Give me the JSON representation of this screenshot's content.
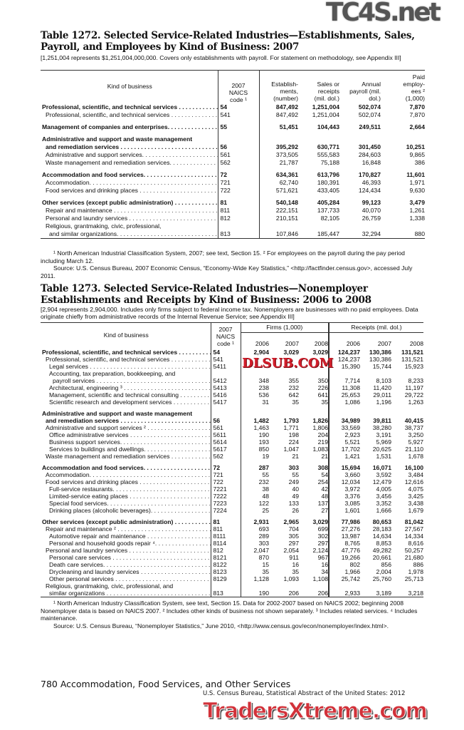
{
  "watermarks": {
    "top": "TC4S.net",
    "middle": "DLSUB.COM",
    "bottom": "TradersXtreme.com"
  },
  "t1": {
    "title1": "Table 1272. Selected Service-Related Industries—Establishments, Sales,",
    "title2": "Payroll, and Employees by Kind of Business: 2007",
    "note": "[1,251,004 represents $1,251,004,000,000. Covers only establishments with payroll. For statement on methodology, see Appendix III]",
    "headers": [
      "Kind of business",
      "2007 NAICS code ¹",
      "Establish- ments, (number)",
      "Sales or receipts (mil. dol.)",
      "Annual payroll (mil. dol.)",
      "Paid employ- ees ² (1,000)"
    ],
    "rows": [
      {
        "label": "Professional, scientific, and technical services",
        "code": "54",
        "v": [
          "847,492",
          "1,251,004",
          "502,074",
          "7,870"
        ],
        "bold": true
      },
      {
        "label": "Professional, scientific, and technical services",
        "code": "541",
        "v": [
          "847,492",
          "1,251,004",
          "502,074",
          "7,870"
        ],
        "indent": 1
      },
      {
        "gap": true
      },
      {
        "label": "Management of companies and enterprises.",
        "code": "55",
        "v": [
          "51,451",
          "104,443",
          "249,511",
          "2,664"
        ],
        "bold": true
      },
      {
        "gap": true
      },
      {
        "label": "Administrative and support and waste management",
        "code": "",
        "v": [
          "",
          "",
          "",
          ""
        ],
        "bold": true,
        "nodots": true
      },
      {
        "label": "and remediation services",
        "code": "56",
        "v": [
          "395,292",
          "630,771",
          "301,450",
          "10,251"
        ],
        "bold": true,
        "indent": 1
      },
      {
        "label": "Administrative and support services.",
        "code": "561",
        "v": [
          "373,505",
          "555,583",
          "284,603",
          "9,865"
        ],
        "indent": 1
      },
      {
        "label": "Waste management and remediation services.",
        "code": "562",
        "v": [
          "21,787",
          "75,188",
          "16,848",
          "386"
        ],
        "indent": 1
      },
      {
        "gap": true
      },
      {
        "label": "Accommodation and food services.",
        "code": "72",
        "v": [
          "634,361",
          "613,796",
          "170,827",
          "11,601"
        ],
        "bold": true
      },
      {
        "label": "Accommodation.",
        "code": "721",
        "v": [
          "62,740",
          "180,391",
          "46,393",
          "1,971"
        ],
        "indent": 1
      },
      {
        "label": "Food services and drinking places",
        "code": "722",
        "v": [
          "571,621",
          "433,405",
          "124,434",
          "9,630"
        ],
        "indent": 1
      },
      {
        "gap": true
      },
      {
        "label": "Other services (except public administration)",
        "code": "81",
        "v": [
          "540,148",
          "405,284",
          "99,123",
          "3,479"
        ],
        "bold": true
      },
      {
        "label": "Repair and maintenance",
        "code": "811",
        "v": [
          "222,151",
          "137,733",
          "40,070",
          "1,261"
        ],
        "indent": 1
      },
      {
        "label": "Personal and laundry services",
        "code": "812",
        "v": [
          "210,151",
          "82,105",
          "26,759",
          "1,338"
        ],
        "indent": 1
      },
      {
        "label": "Religious, grantmaking, civic, professional,",
        "code": "",
        "v": [
          "",
          "",
          "",
          ""
        ],
        "indent": 1,
        "nodots": true
      },
      {
        "label": "and similar organizations.",
        "code": "813",
        "v": [
          "107,846",
          "185,447",
          "32,294",
          "880"
        ],
        "indent": 2
      }
    ],
    "footnote": "¹ North American Industrial Classification System, 2007; see text, Section 15. ² For employees on the payroll during the pay period including March 12.",
    "source": "Source: U.S. Census Bureau, 2007 Economic Census, “Economy-Wide Key Statistics,” <http://factfinder.census.gov>, accessed July 2011."
  },
  "t2": {
    "title1": "Table 1273. Selected Service-Related Industries—Nonemployer",
    "title2": "Establishments and Receipts by Kind of Business: 2006 to 2008",
    "note": "[2,904 represents 2,904,000. Includes only firms subject to federal income tax. Nonemployers are businesses with no paid employees. Data originate chiefly from administrative records of the Internal Revenue Service; see Appendix III]",
    "headers": {
      "kind": "Kind of business",
      "code": "2007 NAICS code ¹",
      "firms": "Firms (1,000)",
      "receipts": "Receipts (mil. dol.)",
      "years": [
        "2006",
        "2007",
        "2008",
        "2006",
        "2007",
        "2008"
      ]
    },
    "rows": [
      {
        "label": "Professional, scientific, and technical services",
        "code": "54",
        "v": [
          "2,904",
          "3,029",
          "3,029",
          "124,237",
          "130,386",
          "131,521"
        ],
        "bold": true
      },
      {
        "label": "Professional, scientific, and technical services",
        "code": "541",
        "v": [
          "",
          "",
          "",
          "124,237",
          "130,386",
          "131,521"
        ],
        "indent": 1
      },
      {
        "label": "Legal services",
        "code": "5411",
        "v": [
          "",
          "",
          "",
          "15,390",
          "15,744",
          "15,923"
        ],
        "indent": 2
      },
      {
        "label": "Accounting, tax preparation, bookkeeping, and",
        "code": "",
        "v": [
          "",
          "",
          "",
          "",
          "",
          ""
        ],
        "indent": 2,
        "nodots": true
      },
      {
        "label": "payroll services",
        "code": "5412",
        "v": [
          "348",
          "355",
          "350",
          "7,714",
          "8,103",
          "8,233"
        ],
        "indent": 3
      },
      {
        "label": "Architectural, engineering ³",
        "code": "5413",
        "v": [
          "238",
          "232",
          "226",
          "11,308",
          "11,420",
          "11,197"
        ],
        "indent": 2
      },
      {
        "label": "Management, scientific and technical consulting",
        "code": "5416",
        "v": [
          "536",
          "642",
          "641",
          "25,653",
          "29,011",
          "29,722"
        ],
        "indent": 2
      },
      {
        "label": "Scientific research and development services",
        "code": "5417",
        "v": [
          "31",
          "35",
          "35",
          "1,086",
          "1,196",
          "1,263"
        ],
        "indent": 2
      },
      {
        "gap": true
      },
      {
        "label": "Administrative and support and waste management",
        "code": "",
        "v": [
          "",
          "",
          "",
          "",
          "",
          ""
        ],
        "bold": true,
        "nodots": true
      },
      {
        "label": "and remediation services",
        "code": "56",
        "v": [
          "1,482",
          "1,793",
          "1,826",
          "34,989",
          "39,811",
          "40,415"
        ],
        "bold": true,
        "indent": 1
      },
      {
        "label": "Administrative and support services ²",
        "code": "561",
        "v": [
          "1,463",
          "1,771",
          "1,806",
          "33,569",
          "38,280",
          "38,737"
        ],
        "indent": 1
      },
      {
        "label": "Office administrative services",
        "code": "5611",
        "v": [
          "190",
          "198",
          "204",
          "2,923",
          "3,191",
          "3,250"
        ],
        "indent": 2
      },
      {
        "label": "Business support services.",
        "code": "5614",
        "v": [
          "193",
          "224",
          "219",
          "5,521",
          "5,969",
          "5,927"
        ],
        "indent": 2
      },
      {
        "label": "Services to buildings and dwellings.",
        "code": "5617",
        "v": [
          "850",
          "1,047",
          "1,083",
          "17,702",
          "20,625",
          "21,110"
        ],
        "indent": 2
      },
      {
        "label": "Waste management and remediation services",
        "code": "562",
        "v": [
          "19",
          "21",
          "21",
          "1,421",
          "1,531",
          "1,678"
        ],
        "indent": 1
      },
      {
        "gap": true
      },
      {
        "label": "Accommodation and food services.",
        "code": "72",
        "v": [
          "287",
          "303",
          "308",
          "15,694",
          "16,071",
          "16,100"
        ],
        "bold": true
      },
      {
        "label": "Accommodation.",
        "code": "721",
        "v": [
          "55",
          "55",
          "54",
          "3,660",
          "3,592",
          "3,484"
        ],
        "indent": 1
      },
      {
        "label": "Food services and drinking places",
        "code": "722",
        "v": [
          "232",
          "249",
          "254",
          "12,034",
          "12,479",
          "12,616"
        ],
        "indent": 1
      },
      {
        "label": "Full-service restaurants.",
        "code": "7221",
        "v": [
          "38",
          "40",
          "42",
          "3,972",
          "4,005",
          "4,075"
        ],
        "indent": 2
      },
      {
        "label": "Limited-service eating places",
        "code": "7222",
        "v": [
          "48",
          "49",
          "48",
          "3,376",
          "3,456",
          "3,425"
        ],
        "indent": 2
      },
      {
        "label": "Special food services.",
        "code": "7223",
        "v": [
          "122",
          "133",
          "137",
          "3,085",
          "3,352",
          "3,438"
        ],
        "indent": 2
      },
      {
        "label": "Drinking places (alcoholic beverages).",
        "code": "7224",
        "v": [
          "25",
          "26",
          "27",
          "1,601",
          "1,666",
          "1,679"
        ],
        "indent": 2
      },
      {
        "gap": true
      },
      {
        "label": "Other services (except public administration)",
        "code": "81",
        "v": [
          "2,931",
          "2,965",
          "3,029",
          "77,986",
          "80,653",
          "81,042"
        ],
        "bold": true
      },
      {
        "label": "Repair and maintenance ²",
        "code": "811",
        "v": [
          "693",
          "704",
          "699",
          "27,276",
          "28,183",
          "27,567"
        ],
        "indent": 1
      },
      {
        "label": "Automotive repair and maintenance",
        "code": "8111",
        "v": [
          "289",
          "305",
          "302",
          "13,987",
          "14,634",
          "14,334"
        ],
        "indent": 2
      },
      {
        "label": "Personal and household goods repair ⁴.",
        "code": "8114",
        "v": [
          "303",
          "297",
          "297",
          "8,765",
          "8,853",
          "8,616"
        ],
        "indent": 2
      },
      {
        "label": "Personal and laundry services",
        "code": "812",
        "v": [
          "2,047",
          "2,054",
          "2,124",
          "47,776",
          "49,282",
          "50,257"
        ],
        "indent": 1
      },
      {
        "label": "Personal care services",
        "code": "8121",
        "v": [
          "870",
          "911",
          "967",
          "19,266",
          "20,661",
          "21,680"
        ],
        "indent": 2
      },
      {
        "label": "Death care services.",
        "code": "8122",
        "v": [
          "15",
          "16",
          "16",
          "802",
          "856",
          "886"
        ],
        "indent": 2
      },
      {
        "label": "Drycleaning and laundry services",
        "code": "8123",
        "v": [
          "35",
          "35",
          "34",
          "1,966",
          "2,004",
          "1,978"
        ],
        "indent": 2
      },
      {
        "label": "Other personal services",
        "code": "8129",
        "v": [
          "1,128",
          "1,093",
          "1,108",
          "25,742",
          "25,760",
          "25,713"
        ],
        "indent": 2
      },
      {
        "label": "Religious, grantmaking, civic, professional, and",
        "code": "",
        "v": [
          "",
          "",
          "",
          "",
          "",
          ""
        ],
        "indent": 1,
        "nodots": true
      },
      {
        "label": "similar organizations",
        "code": "813",
        "v": [
          "190",
          "206",
          "206",
          "2,933",
          "3,189",
          "3,218"
        ],
        "indent": 2
      }
    ],
    "footnote": "¹ North American Industry Classification System, see text, Section 15. Data for 2002-2007 based on NAICS 2002; beginning 2008 Nonemployer data is based on NAICS 2007. ² Includes other kinds of business not shown separately. ³ Includes related services. ⁴ Includes maintenance.",
    "source": "Source: U.S. Census Bureau, “Nonemployer Statistics,” June 2010, <http://www.census.gov/econ/nonemployer/index.html>."
  },
  "footer": {
    "page": "780  Accommodation, Food Services, and Other Services",
    "source": "U.S. Census Bureau, Statistical Abstract of the United States: 2012"
  }
}
